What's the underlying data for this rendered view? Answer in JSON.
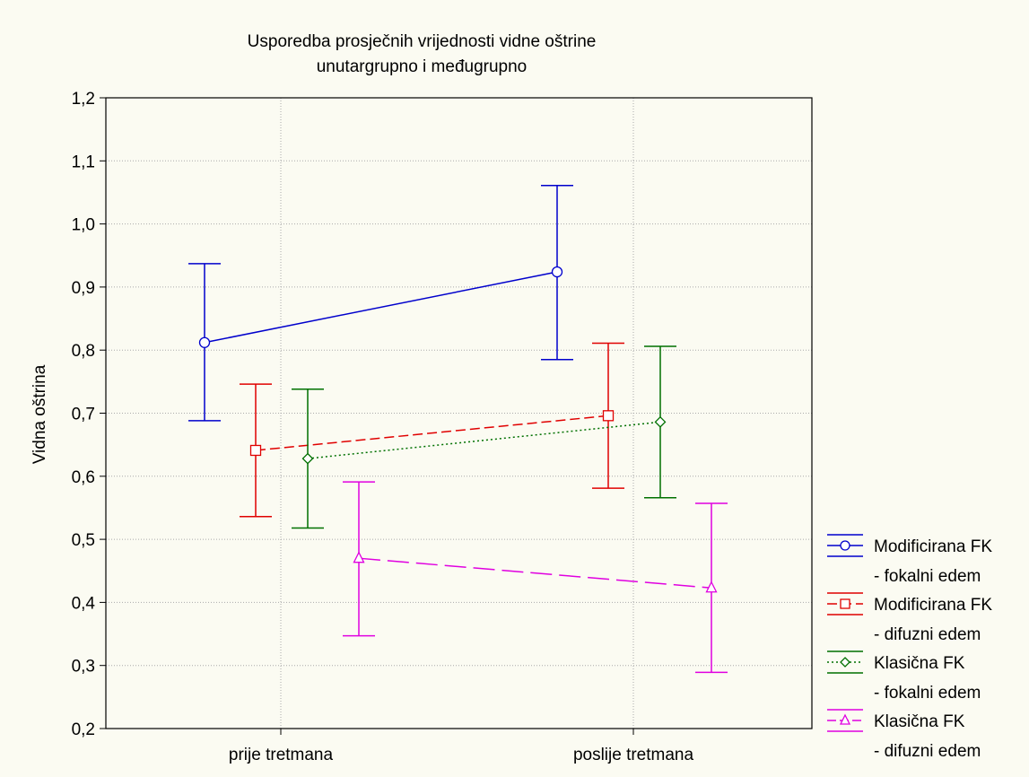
{
  "chart_data": {
    "type": "line",
    "title_lines": [
      "Usporedba prosječnih vrijednosti vidne oštrine",
      "unutargrupno i međugrupno"
    ],
    "xlabel": "",
    "ylabel": "Vidna oštrina",
    "categories": [
      "prije tretmana",
      "poslije tretmana"
    ],
    "ylim": [
      0.2,
      1.2
    ],
    "yticks": [
      "0,2",
      "0,3",
      "0,4",
      "0,5",
      "0,6",
      "0,7",
      "0,8",
      "0,9",
      "1,0",
      "1,1",
      "1,2"
    ],
    "grid": true,
    "legend_position": "right",
    "series": [
      {
        "name_line1": "Modificirana FK",
        "name_line2": "- fokalni edem",
        "color": "#0000cc",
        "marker": "circle",
        "line_style": "solid",
        "values": [
          0.812,
          0.924
        ],
        "lower": [
          0.688,
          0.785
        ],
        "upper": [
          0.937,
          1.061
        ]
      },
      {
        "name_line1": "Modificirana FK",
        "name_line2": "- difuzni edem",
        "color": "#e00000",
        "marker": "square",
        "line_style": "dashed",
        "values": [
          0.641,
          0.696
        ],
        "lower": [
          0.536,
          0.581
        ],
        "upper": [
          0.746,
          0.811
        ]
      },
      {
        "name_line1": "Klasična FK",
        "name_line2": "- fokalni edem",
        "color": "#007000",
        "marker": "diamond",
        "line_style": "dotted",
        "values": [
          0.628,
          0.686
        ],
        "lower": [
          0.518,
          0.566
        ],
        "upper": [
          0.738,
          0.806
        ]
      },
      {
        "name_line1": "Klasična FK",
        "name_line2": "- difuzni edem",
        "color": "#e000e0",
        "marker": "triangle",
        "line_style": "longdash",
        "values": [
          0.47,
          0.423
        ],
        "lower": [
          0.347,
          0.289
        ],
        "upper": [
          0.591,
          0.557
        ]
      }
    ]
  }
}
